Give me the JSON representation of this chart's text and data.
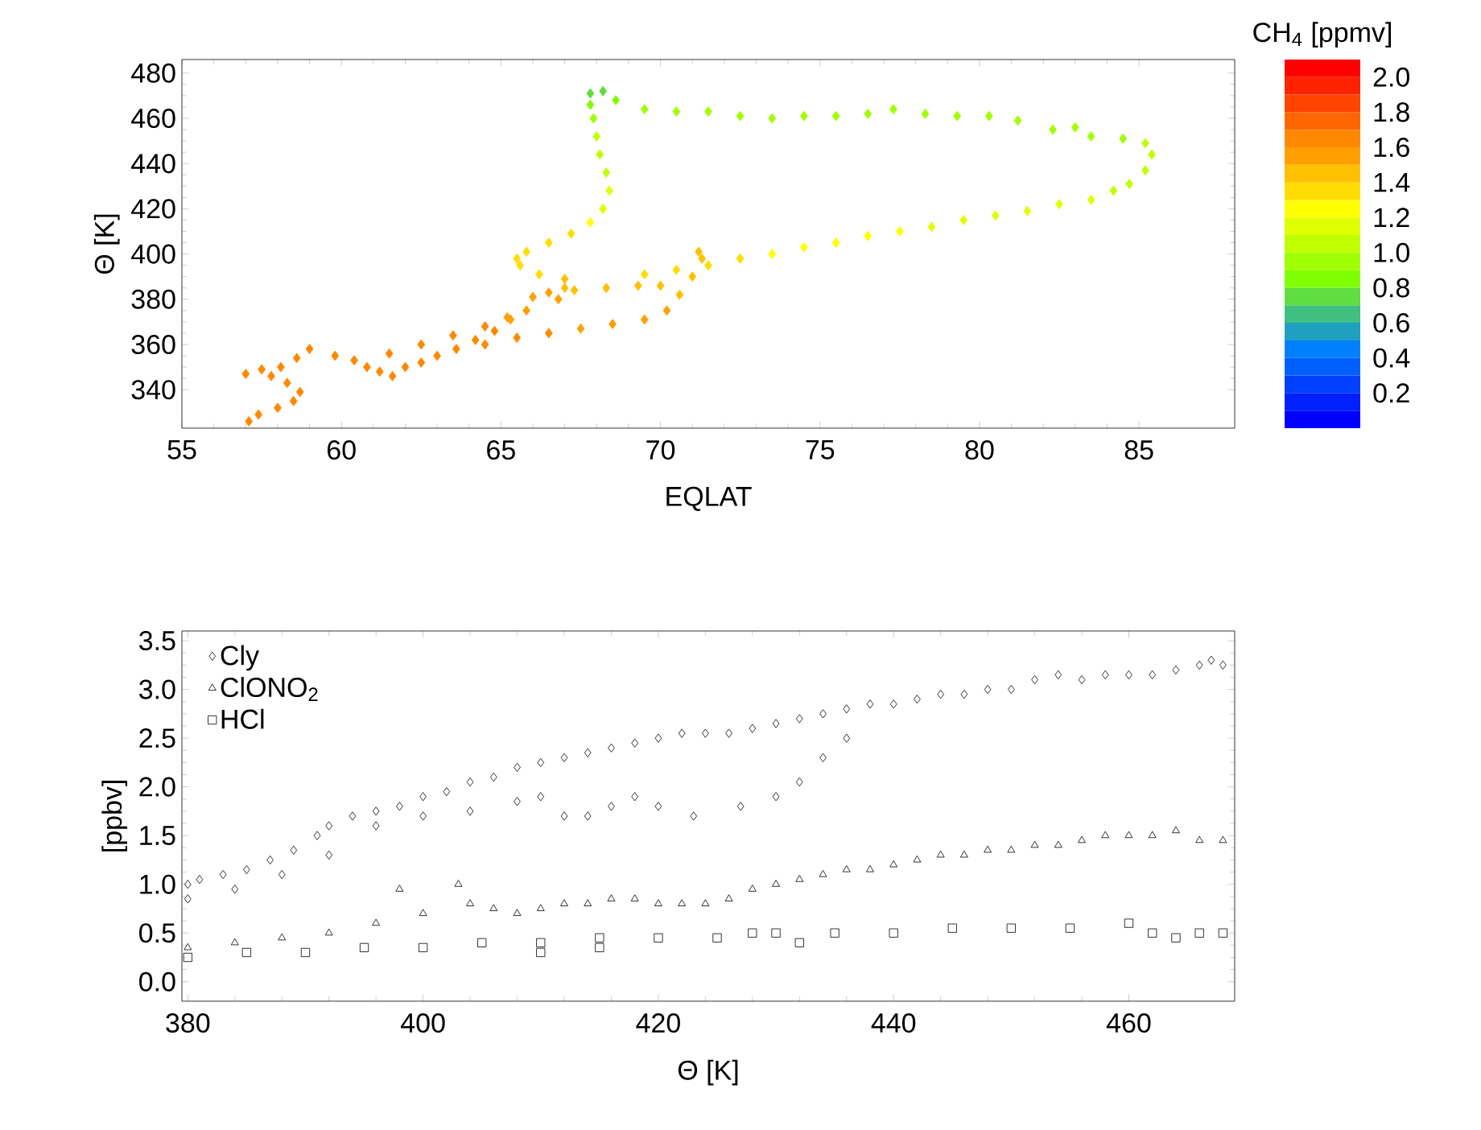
{
  "chart_data": [
    {
      "type": "scatter",
      "xlabel": "EQLAT",
      "ylabel": "Θ [K]",
      "clabel": "CH$_{4}$ [ppmv]",
      "marker": "diamond",
      "x": [
        57.1,
        57.4,
        58.0,
        58.5,
        58.7,
        58.3,
        57.8,
        58.1,
        58.6,
        59.0,
        57.0,
        57.5,
        59.8,
        60.4,
        60.8,
        61.2,
        61.6,
        62.0,
        62.5,
        63.0,
        63.6,
        64.2,
        64.8,
        65.3,
        65.8,
        61.5,
        62.5,
        63.5,
        64.5,
        65.2,
        64.5,
        65.5,
        66.5,
        67.5,
        68.5,
        69.5,
        70.2,
        70.6,
        71.0,
        71.3,
        71.2,
        66.0,
        66.5,
        67.0,
        66.8,
        67.3,
        68.3,
        69.3,
        70.0,
        65.6,
        65.5,
        65.8,
        66.5,
        67.2,
        67.8,
        68.2,
        68.4,
        68.3,
        68.1,
        68.0,
        67.9,
        67.8,
        67.8,
        68.2,
        68.6,
        66.2,
        67.0,
        69.5,
        70.5,
        71.5,
        72.5,
        73.5,
        74.5,
        75.5,
        76.5,
        77.3,
        78.3,
        79.3,
        80.3,
        81.2,
        82.3,
        83.0,
        83.5,
        84.5,
        85.2,
        85.4,
        85.2,
        84.7,
        84.2,
        83.5,
        82.5,
        81.5,
        80.5,
        79.5,
        78.5,
        77.5,
        76.5,
        75.5,
        74.5,
        73.5,
        72.5,
        71.5,
        70.5,
        69.5
      ],
      "values": [
        326,
        329,
        332,
        335,
        339,
        343,
        346,
        350,
        354,
        358,
        347,
        349,
        355,
        353,
        350,
        348,
        346,
        350,
        352,
        355,
        358,
        362,
        366,
        371,
        375,
        356,
        360,
        364,
        368,
        372,
        360,
        363,
        365,
        367,
        369,
        371,
        375,
        382,
        390,
        398,
        401,
        381,
        383,
        385,
        380,
        384,
        385,
        386,
        386,
        395,
        398,
        401,
        405,
        409,
        414,
        420,
        428,
        436,
        444,
        452,
        460,
        466,
        471,
        472,
        468,
        391,
        389,
        464,
        463,
        463,
        461,
        460,
        461,
        461,
        462,
        464,
        462,
        461,
        461,
        459,
        455,
        456,
        452,
        451,
        449,
        444,
        437,
        431,
        428,
        424,
        422,
        419,
        417,
        415,
        412,
        410,
        408,
        405,
        403,
        400,
        398,
        395,
        393,
        391
      ],
      "cvalues": [
        1.6,
        1.6,
        1.6,
        1.6,
        1.6,
        1.6,
        1.6,
        1.6,
        1.6,
        1.6,
        1.6,
        1.6,
        1.6,
        1.6,
        1.6,
        1.6,
        1.6,
        1.6,
        1.6,
        1.6,
        1.6,
        1.6,
        1.6,
        1.5,
        1.5,
        1.6,
        1.6,
        1.6,
        1.6,
        1.5,
        1.6,
        1.6,
        1.6,
        1.5,
        1.5,
        1.5,
        1.5,
        1.4,
        1.4,
        1.4,
        1.4,
        1.5,
        1.5,
        1.4,
        1.5,
        1.4,
        1.4,
        1.4,
        1.4,
        1.3,
        1.3,
        1.3,
        1.3,
        1.3,
        1.2,
        1.1,
        1.1,
        1.0,
        1.0,
        1.0,
        0.9,
        0.8,
        0.7,
        0.7,
        0.8,
        1.3,
        1.4,
        0.9,
        0.9,
        0.9,
        0.9,
        0.9,
        0.9,
        0.9,
        0.9,
        0.9,
        0.9,
        0.9,
        0.9,
        0.9,
        0.9,
        0.9,
        0.9,
        0.9,
        1.0,
        1.0,
        1.0,
        1.0,
        1.0,
        1.1,
        1.1,
        1.1,
        1.1,
        1.1,
        1.1,
        1.2,
        1.2,
        1.2,
        1.2,
        1.2,
        1.3,
        1.3,
        1.3,
        1.3
      ],
      "xlim": [
        55,
        88
      ],
      "ylim": [
        323,
        486
      ],
      "xticks": [
        55,
        60,
        65,
        70,
        75,
        80,
        85
      ],
      "yticks": [
        340,
        360,
        380,
        400,
        420,
        440,
        460,
        480
      ],
      "clim": [
        0,
        2.1
      ],
      "cticks": [
        0.2,
        0.4,
        0.6,
        0.8,
        {
          "value": 1,
          "label": "1.0"
        },
        1.2,
        1.4,
        1.6,
        1.8,
        {
          "value": 2,
          "label": "2.0"
        }
      ]
    },
    {
      "type": "scatter",
      "xlabel": "Θ [K]",
      "ylabel": "[ppbv]",
      "legend": "top left",
      "series": [
        {
          "name": "Cly",
          "color": "#000000",
          "marker": "diamond",
          "x": [
            380,
            381,
            383,
            385,
            387,
            389,
            391,
            392,
            394,
            396,
            398,
            400,
            402,
            404,
            406,
            408,
            410,
            412,
            414,
            416,
            418,
            420,
            422,
            424,
            426,
            428,
            430,
            432,
            434,
            436,
            438,
            440,
            442,
            444,
            446,
            448,
            450,
            452,
            454,
            456,
            458,
            460,
            462,
            464,
            466,
            467,
            468,
            380,
            384,
            388,
            392,
            396,
            400,
            404,
            408,
            410,
            412,
            414,
            416,
            418,
            420,
            423,
            427,
            430,
            432,
            434,
            436
          ],
          "values": [
            1.0,
            1.05,
            1.1,
            1.15,
            1.25,
            1.35,
            1.5,
            1.6,
            1.7,
            1.75,
            1.8,
            1.9,
            1.95,
            2.05,
            2.1,
            2.2,
            2.25,
            2.3,
            2.35,
            2.4,
            2.45,
            2.5,
            2.55,
            2.55,
            2.55,
            2.6,
            2.65,
            2.7,
            2.75,
            2.8,
            2.85,
            2.85,
            2.9,
            2.95,
            2.95,
            3.0,
            3.0,
            3.1,
            3.15,
            3.1,
            3.15,
            3.15,
            3.15,
            3.2,
            3.25,
            3.3,
            3.25,
            0.85,
            0.95,
            1.1,
            1.3,
            1.6,
            1.7,
            1.75,
            1.85,
            1.9,
            1.7,
            1.7,
            1.8,
            1.9,
            1.8,
            1.7,
            1.8,
            1.9,
            2.05,
            2.3,
            2.5
          ]
        },
        {
          "name": "ClONO$_{2}$",
          "color": "#000000",
          "marker": "triangle",
          "x": [
            380,
            384,
            388,
            392,
            396,
            398,
            400,
            403,
            404,
            406,
            408,
            410,
            412,
            414,
            416,
            418,
            420,
            422,
            424,
            426,
            428,
            430,
            432,
            434,
            436,
            438,
            440,
            442,
            444,
            446,
            448,
            450,
            452,
            454,
            456,
            458,
            460,
            462,
            464,
            466,
            468
          ],
          "values": [
            0.35,
            0.4,
            0.45,
            0.5,
            0.6,
            0.95,
            0.7,
            1.0,
            0.8,
            0.75,
            0.7,
            0.75,
            0.8,
            0.8,
            0.85,
            0.85,
            0.8,
            0.8,
            0.8,
            0.85,
            0.95,
            1.0,
            1.05,
            1.1,
            1.15,
            1.15,
            1.2,
            1.25,
            1.3,
            1.3,
            1.35,
            1.35,
            1.4,
            1.4,
            1.45,
            1.5,
            1.5,
            1.5,
            1.55,
            1.45,
            1.45
          ]
        },
        {
          "name": "HCl",
          "color": "#000000",
          "marker": "square",
          "x": [
            380,
            385,
            390,
            395,
            400,
            405,
            410,
            410,
            415,
            415,
            420,
            425,
            428,
            430,
            432,
            435,
            440,
            445,
            450,
            455,
            460,
            462,
            464,
            466,
            468
          ],
          "values": [
            0.25,
            0.3,
            0.3,
            0.35,
            0.35,
            0.4,
            0.4,
            0.3,
            0.45,
            0.35,
            0.45,
            0.45,
            0.5,
            0.5,
            0.4,
            0.5,
            0.5,
            0.55,
            0.55,
            0.55,
            0.6,
            0.5,
            0.45,
            0.5,
            0.5
          ]
        }
      ],
      "xlim": [
        379.5,
        469
      ],
      "ylim": [
        -0.2,
        3.6
      ],
      "xticks": [
        380,
        400,
        420,
        440,
        460
      ],
      "yticks": [
        {
          "value": 0,
          "label": "0.0"
        },
        0.5,
        {
          "value": 1,
          "label": "1.0"
        },
        1.5,
        {
          "value": 2,
          "label": "2.0"
        },
        2.5,
        {
          "value": 3,
          "label": "3.0"
        },
        3.5
      ]
    }
  ]
}
